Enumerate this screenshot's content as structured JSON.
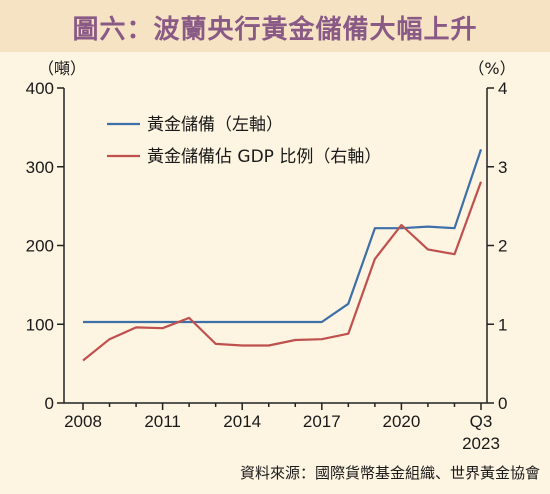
{
  "title": "圖六：波蘭央行黃金儲備大幅上升",
  "source": "資料來源：國際貨幣基金組織、世界黃金協會",
  "colors": {
    "background": "#fdf4e2",
    "title_bar": "#f6e3c4",
    "title_text": "#8a5a86",
    "series_left": "#3d6fa8",
    "series_right": "#c0504d"
  },
  "chart_data": {
    "type": "line",
    "x": [
      "2008",
      "2009",
      "2010",
      "2011",
      "2012",
      "2013",
      "2014",
      "2015",
      "2016",
      "2017",
      "2018",
      "2019",
      "2020",
      "2021",
      "2022",
      "2023 Q3"
    ],
    "x_tick_labels": [
      "2008",
      "2011",
      "2014",
      "2017",
      "2020",
      "Q3"
    ],
    "x_tick_sublabel": "2023",
    "left_axis": {
      "unit_label": "（噸）",
      "ylim": [
        0,
        400
      ],
      "ticks": [
        "0",
        "100",
        "200",
        "300",
        "400"
      ]
    },
    "right_axis": {
      "unit_label": "（%）",
      "ylim": [
        0,
        4
      ],
      "ticks": [
        "0",
        "1",
        "2",
        "3",
        "4"
      ]
    },
    "series": [
      {
        "name": "黃金儲備（左軸）",
        "axis": "left",
        "color": "#3d6fa8",
        "values": [
          102.9,
          102.9,
          102.9,
          102.9,
          102.9,
          102.9,
          102.9,
          102.9,
          102.9,
          102.9,
          126,
          222,
          222,
          224,
          222,
          322
        ]
      },
      {
        "name": "黃金儲備佔 GDP 比例（右軸）",
        "axis": "right",
        "color": "#c0504d",
        "values": [
          0.54,
          0.81,
          0.96,
          0.95,
          1.08,
          0.75,
          0.73,
          0.73,
          0.8,
          0.81,
          0.88,
          1.83,
          2.26,
          1.95,
          1.89,
          2.81
        ]
      }
    ],
    "grid": false,
    "legend_placement": "top-left"
  }
}
